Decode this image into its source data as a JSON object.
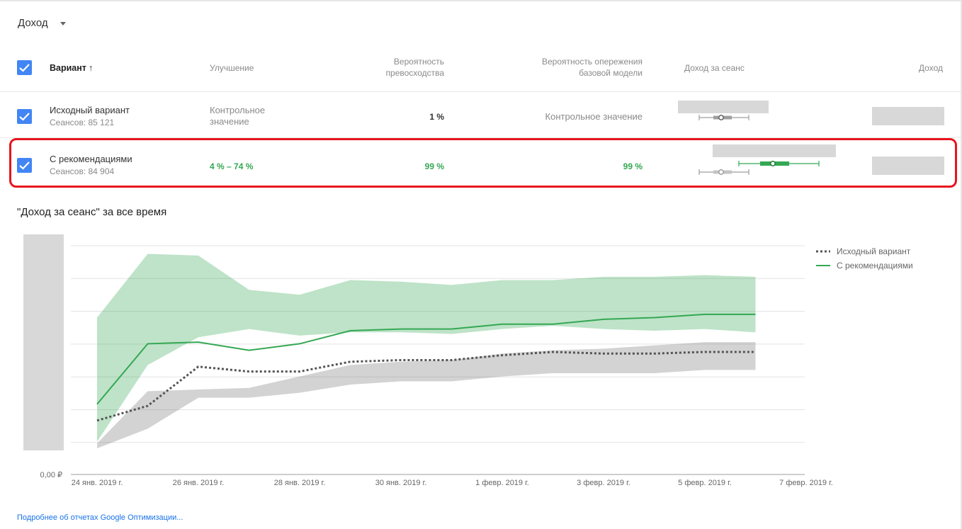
{
  "metric_selector": {
    "label": "Доход"
  },
  "table": {
    "headers": {
      "variant": "Вариант",
      "improvement": "Улучшение",
      "prob_best_line1": "Вероятность",
      "prob_best_line2": "превосходства",
      "prob_beat_line1": "Вероятность опережения",
      "prob_beat_line2": "базовой модели",
      "rev_per_session": "Доход за сеанс",
      "revenue": "Доход"
    },
    "rows": [
      {
        "name": "Исходный вариант",
        "sessions": "Сеансов: 85 121",
        "improvement_line1": "Контрольное",
        "improvement_line2": "значение",
        "prob_best": "1 %",
        "prob_beat": "Контрольное значение"
      },
      {
        "name": "С рекомендациями",
        "sessions": "Сеансов: 84 904",
        "improvement": "4 % – 74 %",
        "prob_best": "99 %",
        "prob_beat": "99 %"
      }
    ]
  },
  "chart_title": "\"Доход за сеанс\" за все время",
  "chart_data": {
    "type": "line",
    "x": [
      "24 янв. 2019 г.",
      "25 янв. 2019 г.",
      "26 янв. 2019 г.",
      "27 янв. 2019 г.",
      "28 янв. 2019 г.",
      "29 янв. 2019 г.",
      "30 янв. 2019 г.",
      "31 янв. 2019 г.",
      "1 февр. 2019 г.",
      "2 февр. 2019 г.",
      "3 февр. 2019 г.",
      "4 февр. 2019 г.",
      "5 февр. 2019 г.",
      "6 февр. 2019 г."
    ],
    "x_tick_labels": [
      "24 янв. 2019 г.",
      "26 янв. 2019 г.",
      "28 янв. 2019 г.",
      "30 янв. 2019 г.",
      "1 февр. 2019 г.",
      "3 февр. 2019 г.",
      "5 февр. 2019 г.",
      "7 февр. 2019 г."
    ],
    "y_tick_label": "0,00 ₽",
    "ylim": [
      0,
      7
    ],
    "grid": true,
    "legend_position": "top-right",
    "series": [
      {
        "name": "Исходный вариант",
        "color": "#555555",
        "style": "dotted",
        "values": [
          1.65,
          2.1,
          3.3,
          3.15,
          3.15,
          3.45,
          3.5,
          3.5,
          3.65,
          3.75,
          3.7,
          3.7,
          3.75,
          3.75
        ],
        "band_low": [
          0.8,
          1.4,
          2.35,
          2.35,
          2.5,
          2.75,
          2.85,
          2.85,
          3.0,
          3.1,
          3.1,
          3.1,
          3.2,
          3.2
        ],
        "band_high": [
          0.95,
          2.55,
          2.6,
          2.65,
          3.0,
          3.35,
          3.45,
          3.5,
          3.7,
          3.8,
          3.85,
          3.95,
          4.05,
          4.05
        ]
      },
      {
        "name": "С рекомендациями",
        "color": "#34a853",
        "style": "solid",
        "values": [
          2.15,
          4.0,
          4.05,
          3.8,
          4.0,
          4.4,
          4.45,
          4.45,
          4.6,
          4.6,
          4.75,
          4.8,
          4.9,
          4.9
        ],
        "band_low": [
          1.0,
          3.35,
          4.2,
          4.45,
          4.25,
          4.35,
          4.35,
          4.3,
          4.45,
          4.55,
          4.45,
          4.4,
          4.45,
          4.35
        ],
        "band_high": [
          4.8,
          6.75,
          6.7,
          5.65,
          5.5,
          5.95,
          5.9,
          5.8,
          5.95,
          5.95,
          6.05,
          6.05,
          6.1,
          6.05
        ]
      }
    ]
  },
  "legend": {
    "items": [
      "Исходный вариант",
      "С рекомендациями"
    ]
  },
  "footer": {
    "link": "Подробнее об отчетах Google Оптимизации..."
  }
}
